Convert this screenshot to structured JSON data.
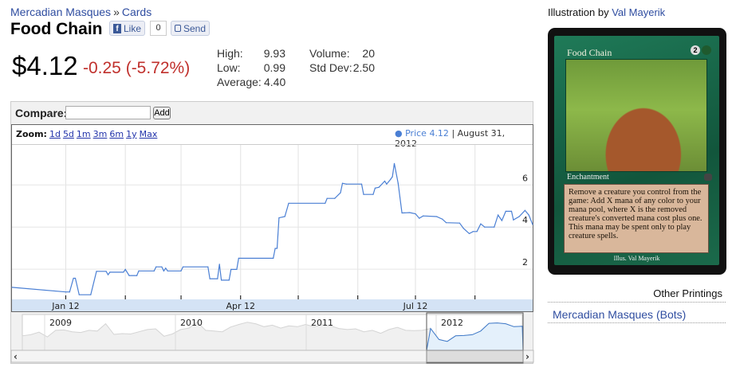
{
  "breadcrumb": {
    "set": "Mercadian Masques",
    "separator": "»",
    "section": "Cards"
  },
  "title": "Food Chain",
  "social": {
    "like_label": "Like",
    "like_count": "0",
    "send_label": "Send"
  },
  "price": {
    "current": "$4.12",
    "change": "-0.25 (-5.72%)"
  },
  "stats": {
    "high_label": "High:",
    "high": "9.93",
    "low_label": "Low:",
    "low": "0.99",
    "avg_label": "Average:",
    "avg": "4.40",
    "volume_label": "Volume:",
    "volume": "20",
    "stddev_label": "Std Dev:",
    "stddev": "2.50"
  },
  "compare": {
    "label": "Compare:",
    "value": "",
    "add_label": "Add"
  },
  "zoom": {
    "label": "Zoom:",
    "options": [
      "1d",
      "5d",
      "1m",
      "3m",
      "6m",
      "1y",
      "Max"
    ]
  },
  "legend": {
    "bullet": "●",
    "series": "Price 4.12",
    "separator": "|",
    "date": "August 31, 2012"
  },
  "colors": {
    "link": "#2f4da0",
    "negative": "#c0302c",
    "series": "#4a7fd4",
    "axis_band": "#d4e3f5"
  },
  "chart_data": {
    "type": "line",
    "title": "",
    "xlabel": "",
    "ylabel": "",
    "x_tick_labels": [
      "Jan 12",
      "Apr 12",
      "Jul 12"
    ],
    "y_tick_labels": [
      "2",
      "4",
      "6"
    ],
    "xlim": [
      "2011-12-04",
      "2012-08-31"
    ],
    "ylim": [
      0.57,
      7.9
    ],
    "grid": true,
    "series": [
      {
        "name": "Price",
        "points": [
          [
            "2011-12-04",
            1.14
          ],
          [
            "2012-01-01",
            0.92
          ],
          [
            "2012-01-03",
            0.92
          ],
          [
            "2012-01-05",
            1.57
          ],
          [
            "2012-01-06",
            1.57
          ],
          [
            "2012-01-08",
            0.79
          ],
          [
            "2012-01-14",
            0.79
          ],
          [
            "2012-01-17",
            1.9
          ],
          [
            "2012-01-22",
            1.9
          ],
          [
            "2012-01-23",
            1.74
          ],
          [
            "2012-01-24",
            1.86
          ],
          [
            "2012-01-31",
            1.86
          ],
          [
            "2012-02-01",
            1.99
          ],
          [
            "2012-02-03",
            1.7
          ],
          [
            "2012-02-07",
            1.7
          ],
          [
            "2012-02-08",
            1.92
          ],
          [
            "2012-02-16",
            1.92
          ],
          [
            "2012-02-17",
            2.11
          ],
          [
            "2012-02-20",
            2.11
          ],
          [
            "2012-02-21",
            1.92
          ],
          [
            "2012-02-22",
            2.05
          ],
          [
            "2012-02-23",
            1.92
          ],
          [
            "2012-03-01",
            1.92
          ],
          [
            "2012-03-02",
            2.11
          ],
          [
            "2012-03-15",
            2.11
          ],
          [
            "2012-03-16",
            1.55
          ],
          [
            "2012-03-20",
            1.55
          ],
          [
            "2012-03-21",
            2.24
          ],
          [
            "2012-03-22",
            1.48
          ],
          [
            "2012-03-26",
            1.48
          ],
          [
            "2012-03-27",
            1.99
          ],
          [
            "2012-03-30",
            1.99
          ],
          [
            "2012-03-31",
            2.52
          ],
          [
            "2012-04-18",
            2.52
          ],
          [
            "2012-04-19",
            2.99
          ],
          [
            "2012-04-20",
            2.99
          ],
          [
            "2012-04-21",
            4.44
          ],
          [
            "2012-04-24",
            4.5
          ],
          [
            "2012-04-26",
            5.13
          ],
          [
            "2012-05-15",
            5.13
          ],
          [
            "2012-05-16",
            5.36
          ],
          [
            "2012-05-20",
            5.36
          ],
          [
            "2012-05-23",
            5.63
          ],
          [
            "2012-05-24",
            6.08
          ],
          [
            "2012-05-26",
            6.04
          ],
          [
            "2012-06-03",
            6.04
          ],
          [
            "2012-06-04",
            5.55
          ],
          [
            "2012-06-09",
            5.55
          ],
          [
            "2012-06-10",
            5.85
          ],
          [
            "2012-06-12",
            5.89
          ],
          [
            "2012-06-15",
            6.18
          ],
          [
            "2012-06-16",
            6.04
          ],
          [
            "2012-06-18",
            6.26
          ],
          [
            "2012-06-19",
            6.39
          ],
          [
            "2012-06-20",
            7.02
          ],
          [
            "2012-06-22",
            6.08
          ],
          [
            "2012-06-24",
            4.67
          ],
          [
            "2012-06-28",
            4.69
          ],
          [
            "2012-07-01",
            4.63
          ],
          [
            "2012-07-03",
            4.42
          ],
          [
            "2012-07-05",
            4.53
          ],
          [
            "2012-07-12",
            4.5
          ],
          [
            "2012-07-15",
            4.38
          ],
          [
            "2012-07-17",
            4.21
          ],
          [
            "2012-07-24",
            4.19
          ],
          [
            "2012-07-26",
            3.94
          ],
          [
            "2012-07-29",
            3.69
          ],
          [
            "2012-07-31",
            3.79
          ],
          [
            "2012-08-02",
            3.79
          ],
          [
            "2012-08-04",
            4.15
          ],
          [
            "2012-08-06",
            4.0
          ],
          [
            "2012-08-11",
            4.0
          ],
          [
            "2012-08-13",
            4.57
          ],
          [
            "2012-08-15",
            4.31
          ],
          [
            "2012-08-17",
            4.75
          ],
          [
            "2012-08-20",
            4.75
          ],
          [
            "2012-08-21",
            4.34
          ],
          [
            "2012-08-24",
            4.5
          ],
          [
            "2012-08-27",
            4.79
          ],
          [
            "2012-08-29",
            4.57
          ],
          [
            "2012-08-31",
            4.12
          ]
        ]
      }
    ],
    "navigator": {
      "year_labels": [
        "2009",
        "2010",
        "2011",
        "2012"
      ],
      "values": [
        3.5,
        3.8,
        4.5,
        3.2,
        5.0,
        5.1,
        4.6,
        4.4,
        5.0,
        4.8,
        6.8,
        3.9,
        4.1,
        4.0,
        4.6,
        5.2,
        5.4,
        3.4,
        4.0,
        5.2,
        5.6,
        7.2,
        5.0,
        4.8,
        4.6,
        5.9,
        6.6,
        7.2,
        6.8,
        6.0,
        6.4,
        5.6,
        6.2,
        6.0,
        6.6,
        6.0,
        6.5,
        6.2,
        5.5,
        5.2,
        5.4,
        4.6,
        5.0,
        4.2,
        5.2,
        5.8,
        5.0,
        4.9,
        5.0,
        5.5,
        2.5,
        2.0,
        3.5,
        3.6,
        3.8,
        4.8,
        6.9,
        7.0,
        6.8,
        6.0,
        6.1
      ]
    }
  },
  "card": {
    "name": "Food Chain",
    "cost_generic": "2",
    "type": "Enchantment",
    "rules": "Remove a creature you control from the game: Add X mana of any color to your mana pool, where X is the removed creature's converted mana cost plus one. This mana may be spent only to play creature spells.",
    "illus": "Illus. Val Mayerik"
  },
  "sidebar": {
    "illustration_prefix": "Illustration by",
    "artist": "Val Mayerik",
    "other_printings_label": "Other Printings",
    "printings": [
      "Mercadian Masques (Bots)"
    ]
  }
}
